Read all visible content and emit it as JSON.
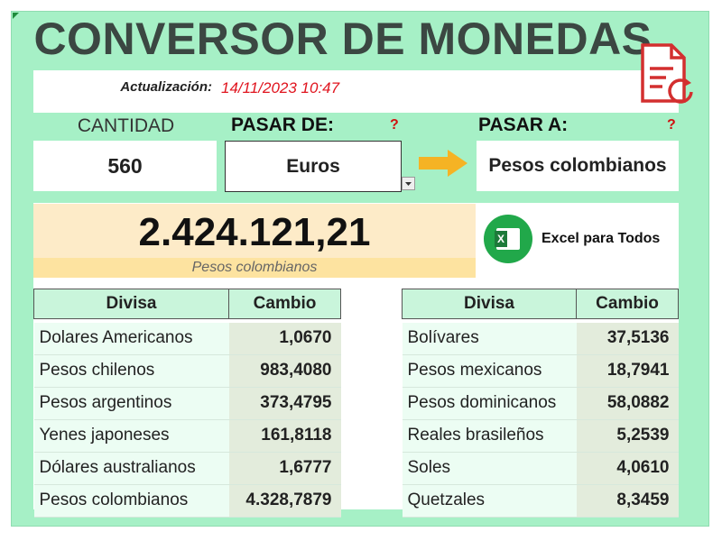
{
  "header": {
    "title": "CONVERSOR DE MONEDAS",
    "update_label": "Actualización:",
    "update_value": "14/11/2023 10:47"
  },
  "converter": {
    "amount_label": "CANTIDAD",
    "amount": "560",
    "from_label": "PASAR DE:",
    "from_help": "?",
    "from": "Euros",
    "to_label": "PASAR A:",
    "to_help": "?",
    "to": "Pesos colombianos"
  },
  "result": {
    "value": "2.424.121,21",
    "currency": "Pesos colombianos"
  },
  "brand": "Excel para Todos",
  "tables": [
    {
      "headers": [
        "Divisa",
        "Cambio"
      ],
      "rows": [
        [
          "Dolares Americanos",
          "1,0670"
        ],
        [
          "Pesos chilenos",
          "983,4080"
        ],
        [
          "Pesos argentinos",
          "373,4795"
        ],
        [
          "Yenes japoneses",
          "161,8118"
        ],
        [
          "Dólares australianos",
          "1,6777"
        ],
        [
          "Pesos colombianos",
          "4.328,7879"
        ]
      ]
    },
    {
      "headers": [
        "Divisa",
        "Cambio"
      ],
      "rows": [
        [
          "Bolívares",
          "37,5136"
        ],
        [
          "Pesos mexicanos",
          "18,7941"
        ],
        [
          "Pesos dominicanos",
          "58,0882"
        ],
        [
          "Reales brasileños",
          "5,2539"
        ],
        [
          "Soles",
          "4,0610"
        ],
        [
          "Quetzales",
          "8,3459"
        ]
      ]
    }
  ]
}
